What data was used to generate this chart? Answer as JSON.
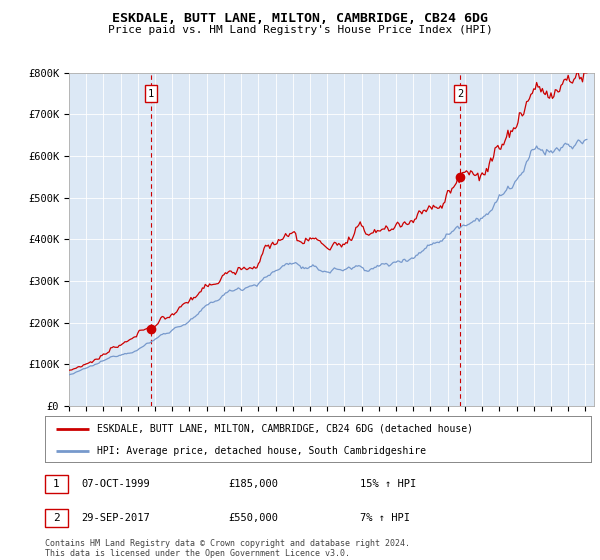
{
  "title": "ESKDALE, BUTT LANE, MILTON, CAMBRIDGE, CB24 6DG",
  "subtitle": "Price paid vs. HM Land Registry's House Price Index (HPI)",
  "ylim": [
    0,
    800000
  ],
  "yticks": [
    0,
    100000,
    200000,
    300000,
    400000,
    500000,
    600000,
    700000,
    800000
  ],
  "ytick_labels": [
    "£0",
    "£100K",
    "£200K",
    "£300K",
    "£400K",
    "£500K",
    "£600K",
    "£700K",
    "£800K"
  ],
  "sale1_date": 1999.75,
  "sale1_price": 185000,
  "sale2_date": 2017.71,
  "sale2_price": 550000,
  "legend_line1": "ESKDALE, BUTT LANE, MILTON, CAMBRIDGE, CB24 6DG (detached house)",
  "legend_line2": "HPI: Average price, detached house, South Cambridgeshire",
  "footer": "Contains HM Land Registry data © Crown copyright and database right 2024.\nThis data is licensed under the Open Government Licence v3.0.",
  "red_color": "#cc0000",
  "blue_color": "#7799cc",
  "background_color": "#ffffff",
  "plot_bg_color": "#dce8f5",
  "grid_color": "#ffffff"
}
